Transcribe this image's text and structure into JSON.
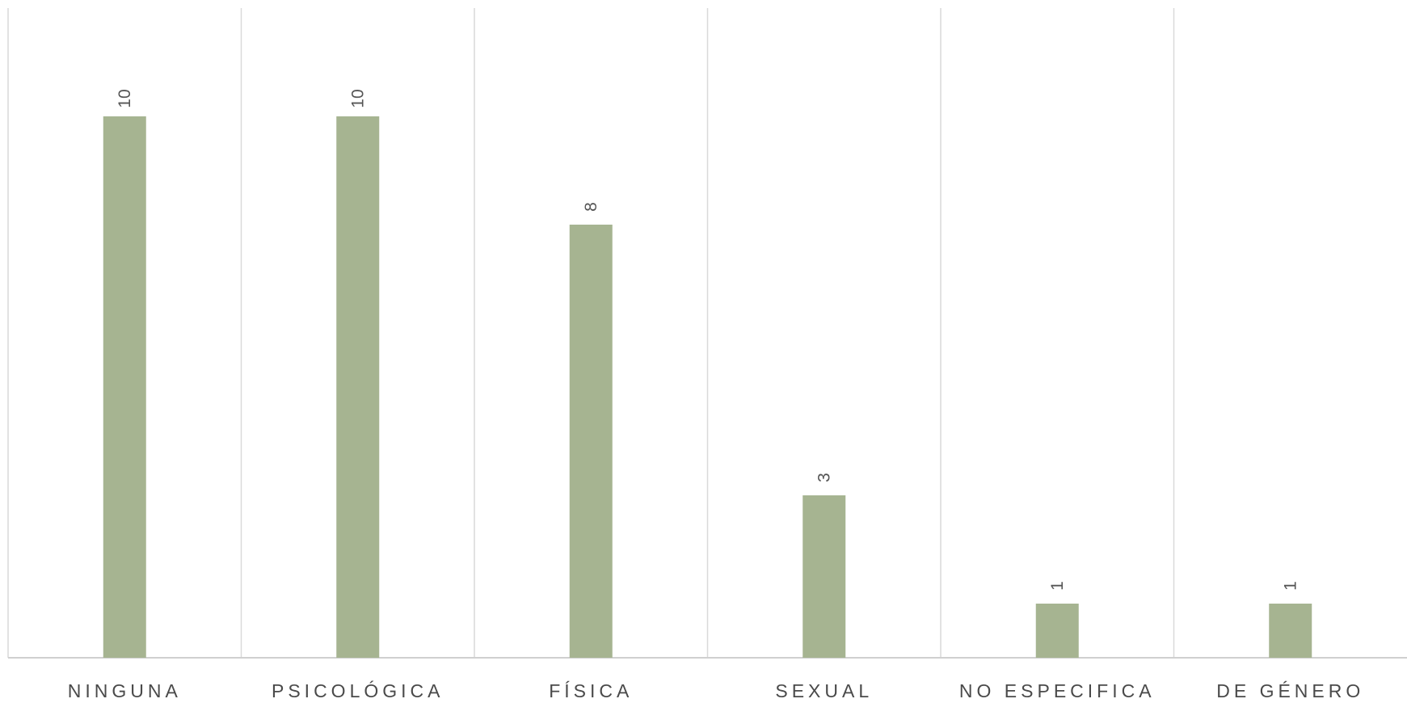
{
  "chart_data": {
    "type": "bar",
    "categories": [
      "NINGUNA",
      "PSICOLÓGICA",
      "FÍSICA",
      "SEXUAL",
      "NO ESPECIFICA",
      "DE GÉNERO"
    ],
    "values": [
      10,
      10,
      8,
      3,
      1,
      1
    ],
    "data_labels": [
      "10",
      "10",
      "8",
      "3",
      "1",
      "1"
    ],
    "title": "",
    "xlabel": "",
    "ylabel": "",
    "ylim": [
      0,
      12
    ],
    "grid": "vertical category separators",
    "legend": "none",
    "bar_color": "#a6b491",
    "grid_color": "#d9d9d9",
    "axis_color": "#d0d0d0"
  }
}
